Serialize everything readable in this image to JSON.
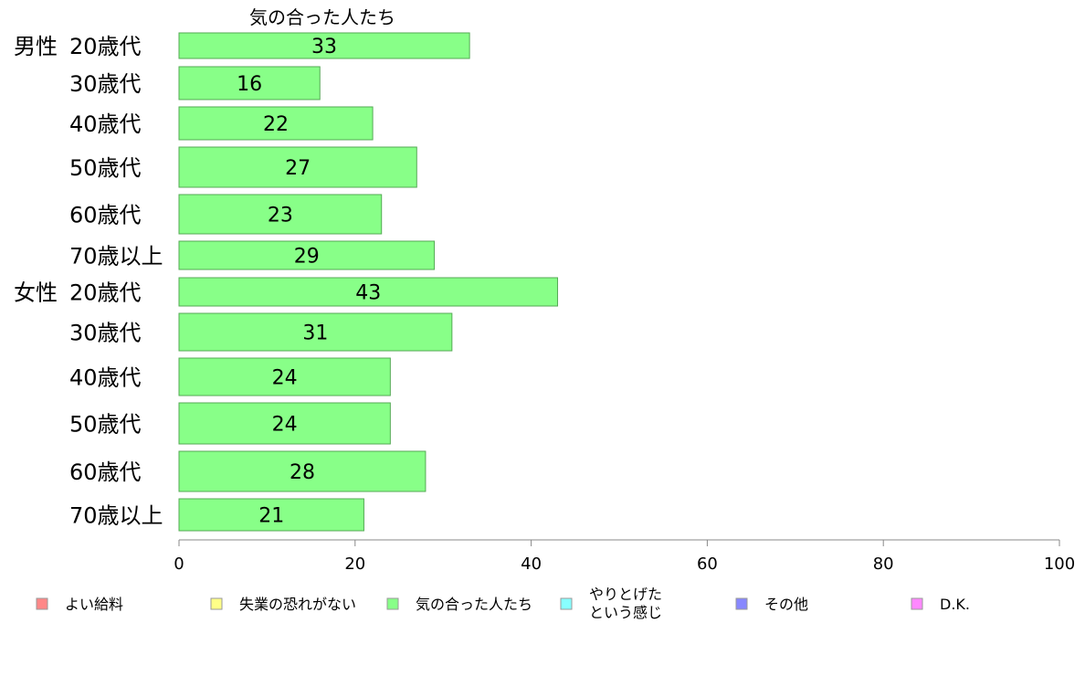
{
  "chart_data": {
    "type": "bar",
    "orientation": "horizontal",
    "title": "気の合った人たち",
    "groups": [
      {
        "label": "男性",
        "start_index": 0
      },
      {
        "label": "女性",
        "start_index": 6
      }
    ],
    "categories": [
      "20歳代",
      "30歳代",
      "40歳代",
      "50歳代",
      "60歳代",
      "70歳以上",
      "20歳代",
      "30歳代",
      "40歳代",
      "50歳代",
      "60歳代",
      "70歳以上"
    ],
    "values": [
      33,
      16,
      22,
      27,
      23,
      29,
      43,
      31,
      24,
      24,
      28,
      21
    ],
    "xlim": [
      0,
      100
    ],
    "xticks": [
      0,
      20,
      40,
      60,
      80,
      100
    ],
    "bar_color": "#88ff88",
    "bar_stroke": "#55aa55",
    "grid": false,
    "legend": {
      "position": "bottom",
      "items": [
        {
          "label": "よい給料",
          "color": "#ff8888"
        },
        {
          "label": "失業の恐れがない",
          "color": "#ffff88"
        },
        {
          "label": "気の合った人たち",
          "color": "#88ff88"
        },
        {
          "label": "やりとげた\nという感じ",
          "color": "#88ffff"
        },
        {
          "label": "その他",
          "color": "#8888ff"
        },
        {
          "label": "D.K.",
          "color": "#ff88ff"
        }
      ]
    }
  }
}
